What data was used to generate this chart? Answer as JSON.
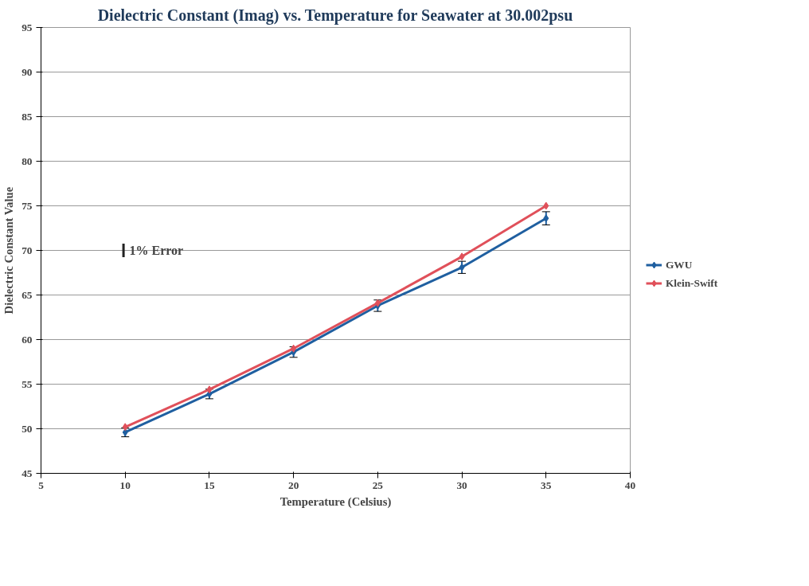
{
  "chart_data": {
    "type": "line",
    "title": "Dielectric Constant (Imag) vs. Temperature for Seawater at 30.002psu",
    "xlabel": "Temperature (Celsius)",
    "ylabel": "Dielectric Constant Value",
    "x": [
      10,
      15,
      20,
      25,
      30,
      35
    ],
    "series": [
      {
        "name": "GWU",
        "color": "#1f5fa0",
        "values": [
          49.6,
          53.9,
          58.6,
          63.8,
          68.1,
          73.6
        ],
        "errors": [
          0.5,
          0.54,
          0.59,
          0.64,
          0.68,
          0.74
        ]
      },
      {
        "name": "Klein-Swift",
        "color": "#e0505a",
        "values": [
          50.2,
          54.4,
          59.0,
          64.1,
          69.3,
          75.0
        ]
      }
    ],
    "annotations": [
      "1% Error"
    ],
    "xlim": [
      5,
      40
    ],
    "xticks": [
      5,
      10,
      15,
      20,
      25,
      30,
      35,
      40
    ],
    "ylim": [
      45,
      95
    ],
    "yticks": [
      45,
      50,
      55,
      60,
      65,
      70,
      75,
      80,
      85,
      90,
      95
    ],
    "grid": "y",
    "legend": "right",
    "marker": "diamond",
    "line_style": "solid"
  }
}
